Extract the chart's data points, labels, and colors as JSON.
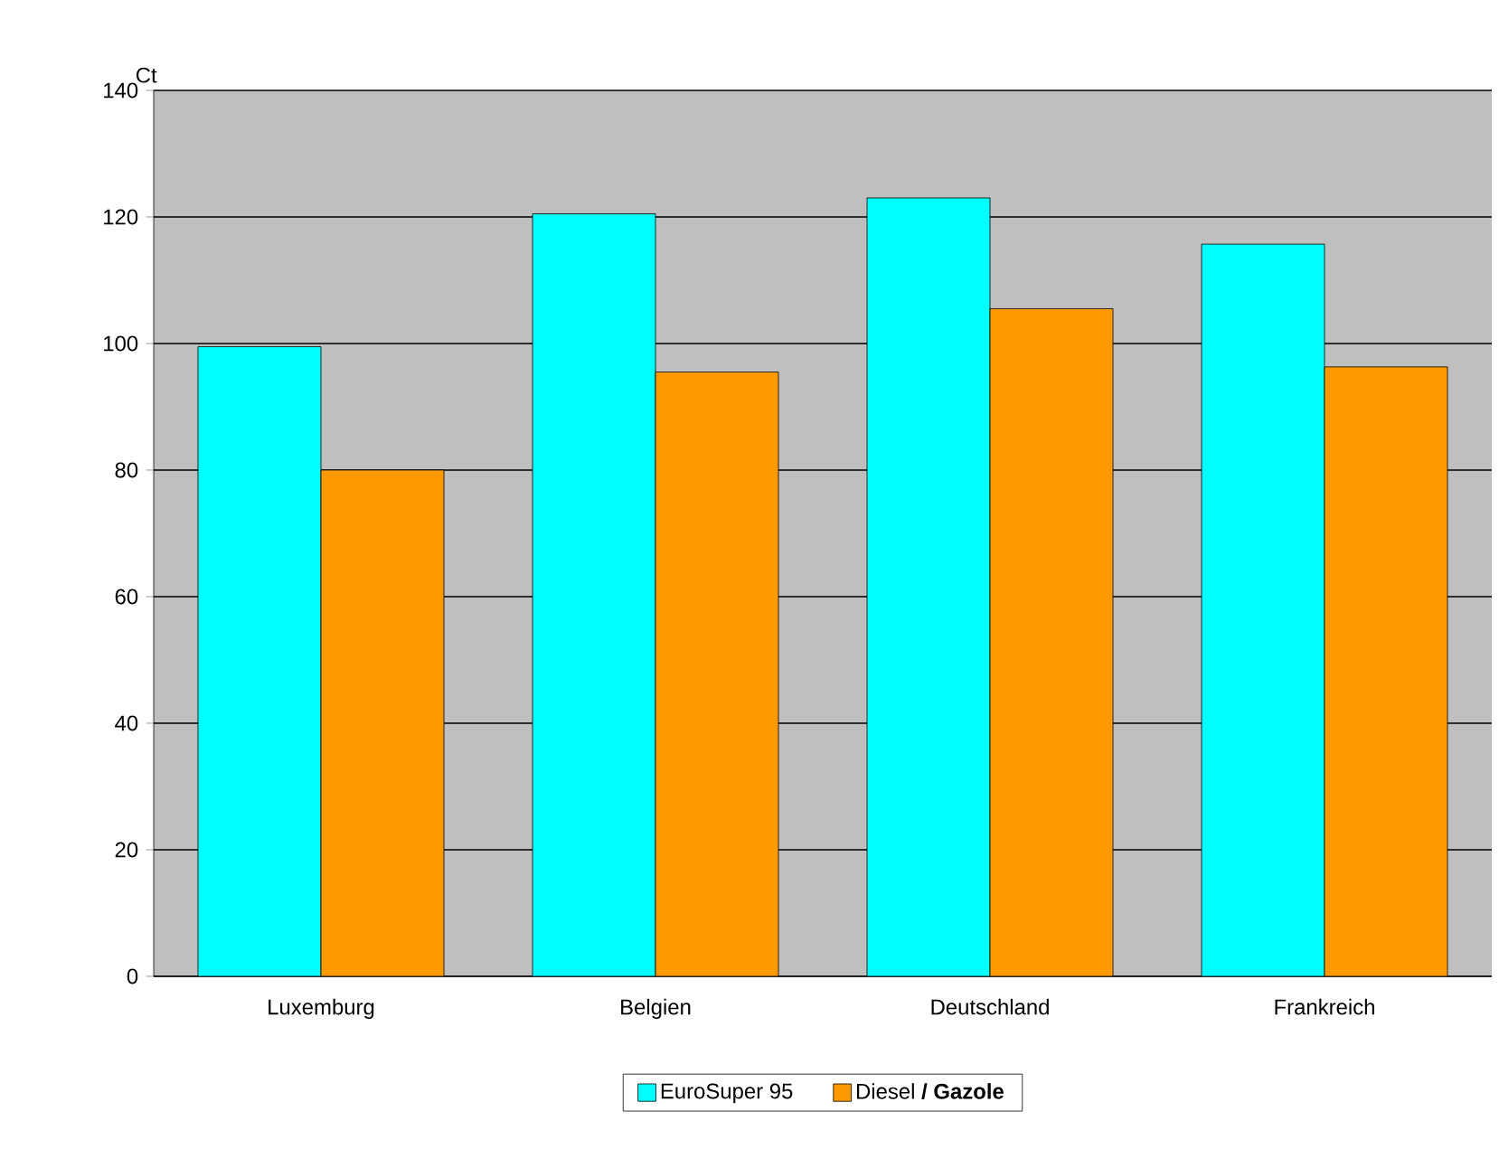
{
  "chart_data": {
    "type": "bar",
    "ylabel": "Ct",
    "categories": [
      "Luxemburg",
      "Belgien",
      "Deutschland",
      "Frankreich"
    ],
    "series": [
      {
        "name": "EuroSuper 95",
        "color": "#00ffff",
        "values": [
          99.5,
          120.5,
          123,
          115.7
        ]
      },
      {
        "name": "Diesel **/ Gazole**",
        "color": "#ff9900",
        "values": [
          80,
          95.5,
          105.5,
          96.3
        ]
      }
    ],
    "ylim": [
      0,
      140
    ],
    "yticks": [
      0,
      20,
      40,
      60,
      80,
      100,
      120,
      140
    ],
    "grid": "y",
    "legend": "bottom"
  }
}
